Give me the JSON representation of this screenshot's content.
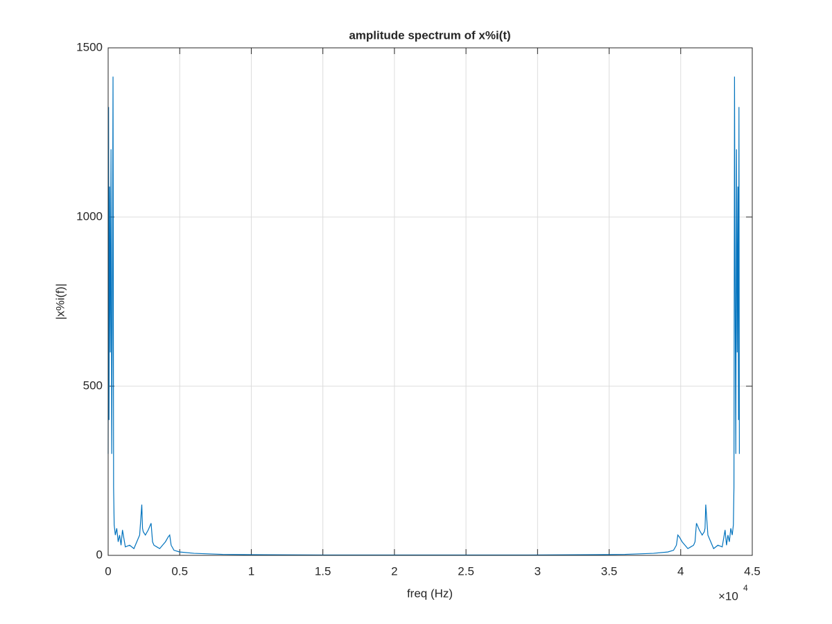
{
  "chart_data": {
    "type": "line",
    "title": "amplitude spectrum of x%i(t)",
    "xlabel": "freq (Hz)",
    "ylabel": "|x%i(f)|",
    "x_exponent_base": "×10",
    "x_exponent_power": "4",
    "x": [
      0,
      30,
      60,
      100,
      150,
      200,
      250,
      300,
      340,
      380,
      420,
      500,
      600,
      700,
      800,
      900,
      1000,
      1200,
      1500,
      1800,
      2000,
      2200,
      2350,
      2400,
      2450,
      2600,
      2800,
      3000,
      3100,
      3200,
      3400,
      3600,
      3800,
      4000,
      4200,
      4300,
      4400,
      4600,
      5000,
      6000,
      8000,
      10000,
      15000,
      20000,
      22050,
      24100,
      29100,
      34100,
      36100,
      38100,
      39100,
      39500,
      39700,
      39800,
      39900,
      40100,
      40300,
      40500,
      40700,
      40900,
      41000,
      41100,
      41300,
      41500,
      41650,
      41700,
      41750,
      41900,
      42100,
      42300,
      42600,
      42900,
      43100,
      43200,
      43300,
      43400,
      43500,
      43600,
      43680,
      43720,
      43760,
      43800,
      43850,
      43900,
      43950,
      44000,
      44040,
      44070,
      44100
    ],
    "series": [
      {
        "color": "#0072bd",
        "values": [
          300,
          1325,
          400,
          1090,
          600,
          1200,
          300,
          800,
          1415,
          200,
          90,
          60,
          80,
          40,
          60,
          30,
          75,
          25,
          30,
          20,
          40,
          60,
          150,
          80,
          70,
          60,
          75,
          95,
          40,
          30,
          25,
          20,
          30,
          40,
          55,
          60,
          30,
          15,
          10,
          6,
          3,
          2,
          1,
          1,
          1,
          1,
          1,
          2,
          3,
          6,
          10,
          15,
          30,
          60,
          55,
          40,
          30,
          20,
          25,
          30,
          40,
          95,
          75,
          60,
          70,
          80,
          150,
          60,
          40,
          20,
          30,
          25,
          75,
          30,
          60,
          40,
          80,
          60,
          90,
          200,
          1415,
          800,
          300,
          1200,
          600,
          1090,
          400,
          1325,
          300
        ]
      }
    ],
    "xlim": [
      0,
      45000
    ],
    "xticks": [
      0,
      {
        "value": 5000,
        "label": "0.5"
      },
      {
        "value": 10000,
        "label": "1"
      },
      {
        "value": 15000,
        "label": "1.5"
      },
      {
        "value": 20000,
        "label": "2"
      },
      {
        "value": 25000,
        "label": "2.5"
      },
      {
        "value": 30000,
        "label": "3"
      },
      {
        "value": 35000,
        "label": "3.5"
      },
      {
        "value": 40000,
        "label": "4"
      },
      {
        "value": 45000,
        "label": "4.5"
      }
    ],
    "ylim": [
      0,
      1500
    ],
    "yticks": [
      0,
      500,
      1000,
      1500
    ],
    "grid": true
  }
}
